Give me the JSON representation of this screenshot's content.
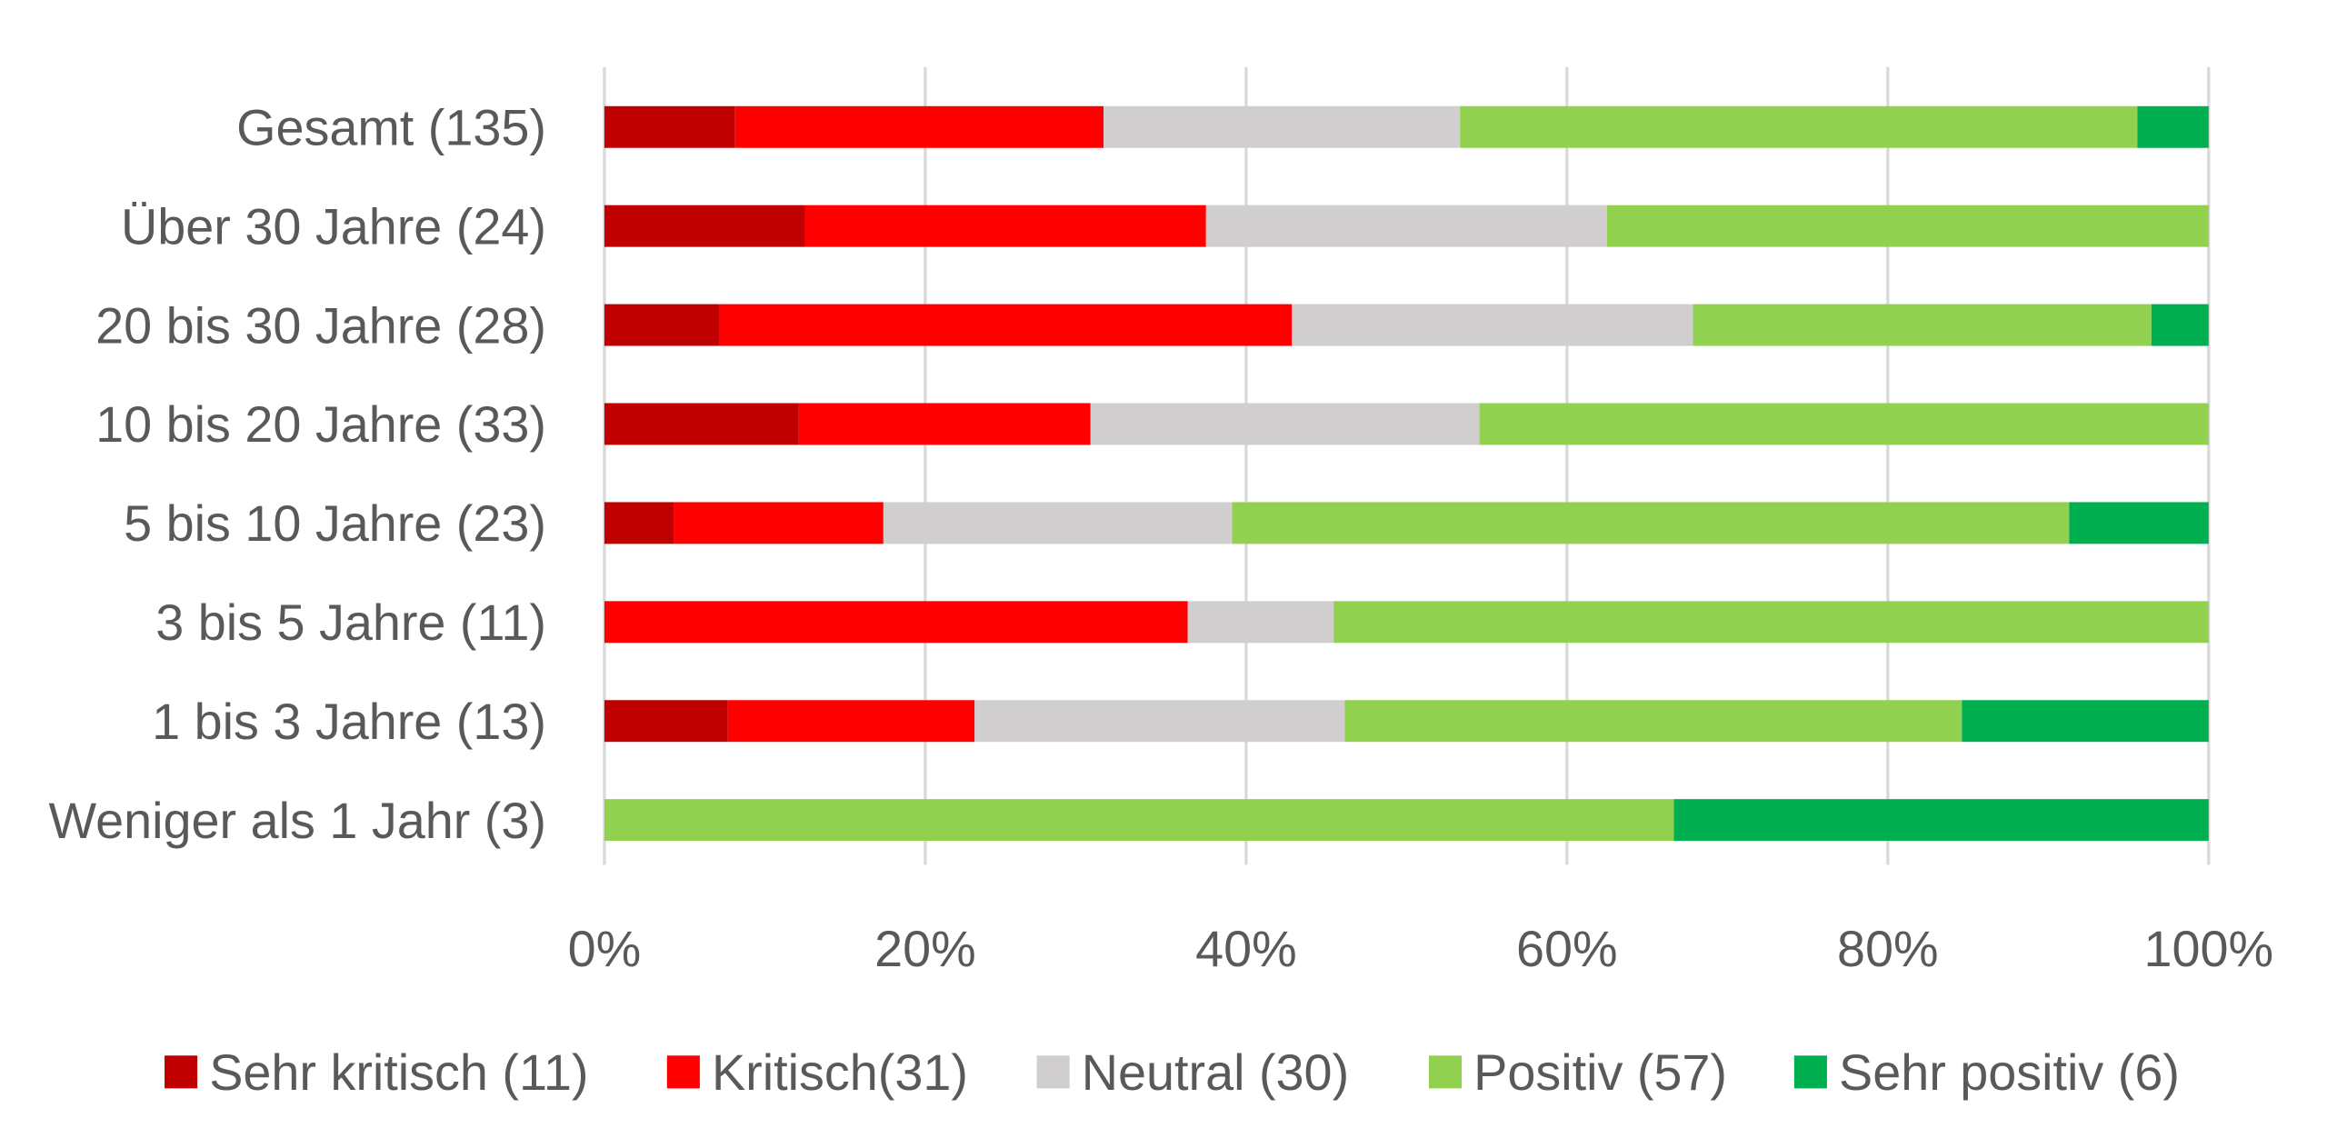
{
  "chart_data": {
    "type": "bar",
    "orientation": "horizontal",
    "stacked": "percent",
    "title": "",
    "xlabel": "",
    "ylabel": "",
    "xlim": [
      0,
      100
    ],
    "x_ticks": [
      "0%",
      "20%",
      "40%",
      "60%",
      "80%",
      "100%"
    ],
    "grid": true,
    "legend_position": "bottom",
    "categories": [
      "Gesamt (135)",
      "Über 30 Jahre (24)",
      "20 bis 30 Jahre (28)",
      "10 bis 20 Jahre (33)",
      "5 bis 10 Jahre (23)",
      "3 bis 5 Jahre (11)",
      "1 bis 3 Jahre (13)",
      "Weniger als 1 Jahr (3)"
    ],
    "series": [
      {
        "name": "Sehr kritisch (11)",
        "color": "#c00000",
        "values": [
          11,
          3,
          2,
          4,
          1,
          0,
          1,
          0
        ]
      },
      {
        "name": "Kritisch(31)",
        "color": "#ff0000",
        "values": [
          31,
          6,
          10,
          6,
          3,
          4,
          2,
          0
        ]
      },
      {
        "name": "Neutral (30)",
        "color": "#d0cece",
        "values": [
          30,
          6,
          7,
          8,
          5,
          1,
          3,
          0
        ]
      },
      {
        "name": "Positiv (57)",
        "color": "#92d050",
        "values": [
          57,
          9,
          8,
          15,
          12,
          6,
          5,
          2
        ]
      },
      {
        "name": "Sehr positiv (6)",
        "color": "#00b050",
        "values": [
          6,
          0,
          1,
          0,
          2,
          0,
          2,
          1
        ]
      }
    ]
  }
}
